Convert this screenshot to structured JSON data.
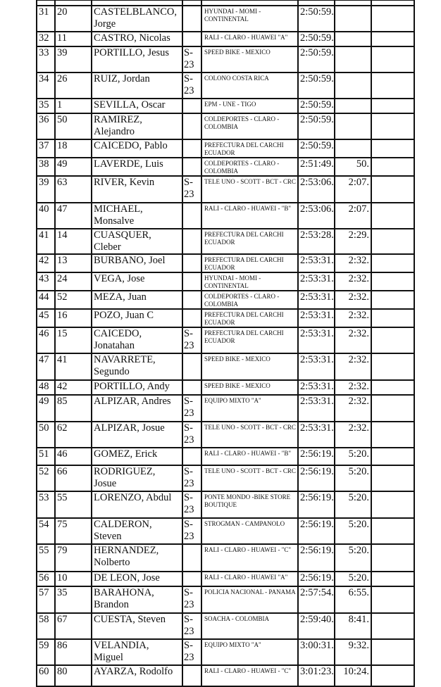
{
  "rows": [
    {
      "pos": "31",
      "num": "20",
      "name": "CASTELBLANCO, Jorge",
      "cat": "",
      "team": "HYUNDAI - MOMI - CONTINENTAL",
      "time": "2:50:59.",
      "gap": ""
    },
    {
      "pos": "32",
      "num": "11",
      "name": "CASTRO, Nicolas",
      "cat": "",
      "team": "RALI - CLARO - HUAWEI \"A\"",
      "time": "2:50:59.",
      "gap": ""
    },
    {
      "pos": "33",
      "num": "39",
      "name": "PORTILLO, Jesus",
      "cat": "S-23",
      "team": "SPEED BIKE - MEXICO",
      "time": "2:50:59.",
      "gap": ""
    },
    {
      "pos": "34",
      "num": "26",
      "name": "RUIZ, Jordan",
      "cat": "S-23",
      "team": "COLONO COSTA RICA",
      "time": "2:50:59.",
      "gap": ""
    },
    {
      "pos": "35",
      "num": "1",
      "name": "SEVILLA, Oscar",
      "cat": "",
      "team": "EPM - UNE - TIGO",
      "time": "2:50:59.",
      "gap": ""
    },
    {
      "pos": "36",
      "num": "50",
      "name": "RAMIREZ, Alejandro",
      "cat": "",
      "team": "COLDEPORTES - CLARO - COLOMBIA",
      "time": "2:50:59.",
      "gap": ""
    },
    {
      "pos": "37",
      "num": "18",
      "name": "CAICEDO, Pablo",
      "cat": "",
      "team": "PREFECTURA DEL CARCHI ECUADOR",
      "time": "2:50:59.",
      "gap": ""
    },
    {
      "pos": "38",
      "num": "49",
      "name": "LAVERDE, Luis",
      "cat": "",
      "team": "COLDEPORTES - CLARO - COLOMBIA",
      "time": "2:51:49.",
      "gap": "50."
    },
    {
      "pos": "39",
      "num": "63",
      "name": "RIVER, Kevin",
      "cat": "S-23",
      "team": "TELE UNO - SCOTT - BCT - CRC",
      "time": "2:53:06.",
      "gap": "2:07."
    },
    {
      "pos": "40",
      "num": "47",
      "name": "MICHAEL, Monsalve",
      "cat": "",
      "team": "RALI - CLARO - HUAWEI - \"B\"",
      "time": "2:53:06.",
      "gap": "2:07."
    },
    {
      "pos": "41",
      "num": "14",
      "name": "CUASQUER, Cleber",
      "cat": "",
      "team": "PREFECTURA DEL CARCHI ECUADOR",
      "time": "2:53:28.",
      "gap": "2:29."
    },
    {
      "pos": "42",
      "num": "13",
      "name": "BURBANO, Joel",
      "cat": "",
      "team": "PREFECTURA DEL CARCHI ECUADOR",
      "time": "2:53:31.",
      "gap": "2:32."
    },
    {
      "pos": "43",
      "num": "24",
      "name": "VEGA, Jose",
      "cat": "",
      "team": "HYUNDAI - MOMI - CONTINENTAL",
      "time": "2:53:31.",
      "gap": "2:32."
    },
    {
      "pos": "44",
      "num": "52",
      "name": "MEZA, Juan",
      "cat": "",
      "team": "COLDEPORTES - CLARO - COLOMBIA",
      "time": "2:53:31.",
      "gap": "2:32."
    },
    {
      "pos": "45",
      "num": "16",
      "name": "POZO, Juan C",
      "cat": "",
      "team": "PREFECTURA DEL CARCHI ECUADOR",
      "time": "2:53:31.",
      "gap": "2:32."
    },
    {
      "pos": "46",
      "num": "15",
      "name": "CAICEDO, Jonatahan",
      "cat": "S-23",
      "team": "PREFECTURA DEL CARCHI ECUADOR",
      "time": "2:53:31.",
      "gap": "2:32."
    },
    {
      "pos": "47",
      "num": "41",
      "name": "NAVARRETE, Segundo",
      "cat": "",
      "team": "SPEED BIKE - MEXICO",
      "time": "2:53:31.",
      "gap": "2:32."
    },
    {
      "pos": "48",
      "num": "42",
      "name": "PORTILLO, Andy",
      "cat": "",
      "team": "SPEED BIKE - MEXICO",
      "time": "2:53:31.",
      "gap": "2:32."
    },
    {
      "pos": "49",
      "num": "85",
      "name": "ALPIZAR, Andres",
      "cat": "S-23",
      "team": "EQUIPO MIXTO \"A\"",
      "time": "2:53:31.",
      "gap": "2:32."
    },
    {
      "pos": "50",
      "num": "62",
      "name": "ALPIZAR, Josue",
      "cat": "S-23",
      "team": "TELE UNO - SCOTT - BCT - CRC",
      "time": "2:53:31.",
      "gap": "2:32."
    },
    {
      "pos": "51",
      "num": "46",
      "name": "GOMEZ, Erick",
      "cat": "",
      "team": "RALI - CLARO - HUAWEI - \"B\"",
      "time": "2:56:19.",
      "gap": "5:20."
    },
    {
      "pos": "52",
      "num": "66",
      "name": "RODRIGUEZ, Josue",
      "cat": "S-23",
      "team": "TELE UNO - SCOTT - BCT - CRC",
      "time": "2:56:19.",
      "gap": "5:20."
    },
    {
      "pos": "53",
      "num": "55",
      "name": "LORENZO, Abdul",
      "cat": "S-23",
      "team": "PONTE MONDO -BIKE STORE BOUTIQUE",
      "time": "2:56:19.",
      "gap": "5:20."
    },
    {
      "pos": "54",
      "num": "75",
      "name": "CALDERON, Steven",
      "cat": "S-23",
      "team": "STROGMAN - CAMPANOLO",
      "time": "2:56:19.",
      "gap": "5:20."
    },
    {
      "pos": "55",
      "num": "79",
      "name": "HERNANDEZ, Nolberto",
      "cat": "",
      "team": "RALI - CLARO - HUAWEI - \"C\"",
      "time": "2:56:19.",
      "gap": "5:20."
    },
    {
      "pos": "56",
      "num": "10",
      "name": "DE LEON, Jose",
      "cat": "",
      "team": "RALI - CLARO - HUAWEI \"A\"",
      "time": "2:56:19.",
      "gap": "5:20."
    },
    {
      "pos": "57",
      "num": "35",
      "name": "BARAHONA, Brandon",
      "cat": "S-23",
      "team": "POLICIA NACIONAL - PANAMA",
      "time": "2:57:54.",
      "gap": "6:55."
    },
    {
      "pos": "58",
      "num": "67",
      "name": "CUESTA, Steven",
      "cat": "S-23",
      "team": "SOACHA - COLOMBIA",
      "time": "2:59:40.",
      "gap": "8:41."
    },
    {
      "pos": "59",
      "num": "86",
      "name": "VELANDIA, Miguel",
      "cat": "S-23",
      "team": "EQUIPO MIXTO \"A\"",
      "time": "3:00:31.",
      "gap": "9:32."
    },
    {
      "pos": "60",
      "num": "80",
      "name": "AYARZA, Rodolfo",
      "cat": "",
      "team": "RALI - CLARO - HUAWEI - \"C\"",
      "time": "3:01:23.",
      "gap": "10:24."
    }
  ]
}
